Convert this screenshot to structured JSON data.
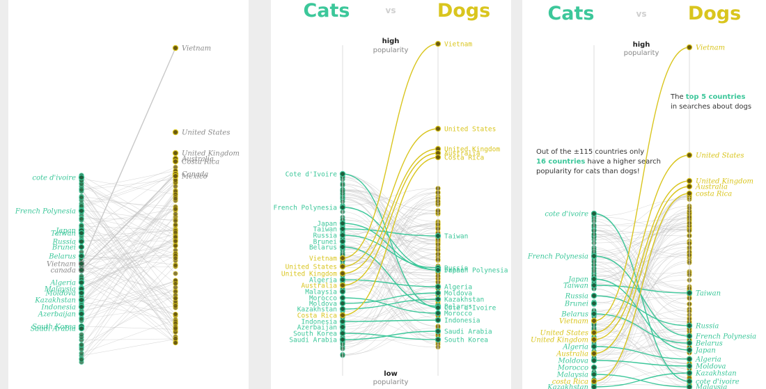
{
  "colors": {
    "cats": "#3cc79a",
    "dogs": "#d9c51e",
    "gray_line": "#bdbdbd",
    "gray_text": "#8a8a8a",
    "axis": "#dddddd"
  },
  "header": {
    "cats": "Cats",
    "vs": "vs",
    "dogs": "Dogs"
  },
  "axis": {
    "high": "high",
    "low": "low",
    "popularity": "popularity"
  },
  "annotation1": {
    "pre": "The ",
    "bold": "top 5 countries",
    "post": "in searches about dogs"
  },
  "annotation2": {
    "pre": "Out of the ±115 countries only",
    "bold": "16 countries",
    "mid": " have a higher search",
    "post": "popularity for cats than dogs!"
  },
  "chart_data": [
    {
      "type": "slope",
      "left": [
        {
          "label": "cote d'ivoire",
          "color": "cats"
        },
        {
          "label": "French Polynesia",
          "color": "cats"
        },
        {
          "label": "Japan",
          "color": "cats"
        },
        {
          "label": "Taiwan",
          "color": "cats"
        },
        {
          "label": "Russia",
          "color": "cats"
        },
        {
          "label": "Brunei",
          "color": "cats"
        },
        {
          "label": "Belarus",
          "color": "cats"
        },
        {
          "label": "Vietnam",
          "color": "gray"
        },
        {
          "label": "canada",
          "color": "gray"
        },
        {
          "label": "Algeria",
          "color": "cats"
        },
        {
          "label": "Malaysia",
          "color": "cats"
        },
        {
          "label": "Moldova",
          "color": "cats"
        },
        {
          "label": "Kazakhstan",
          "color": "cats"
        },
        {
          "label": "Indonesia",
          "color": "cats"
        },
        {
          "label": "Azerbaijan",
          "color": "cats"
        },
        {
          "label": "South Korea",
          "color": "cats"
        },
        {
          "label": "Saudi Arabia",
          "color": "cats"
        }
      ],
      "right": [
        {
          "label": "Vietnam",
          "color": "gray"
        },
        {
          "label": "United States",
          "color": "gray"
        },
        {
          "label": "United Kingdom",
          "color": "gray"
        },
        {
          "label": "Australia",
          "color": "gray"
        },
        {
          "label": "Costa Rica",
          "color": "gray"
        },
        {
          "label": "Canada",
          "color": "gray"
        },
        {
          "label": "Mexico",
          "color": "gray"
        }
      ]
    },
    {
      "type": "slope",
      "left": [
        {
          "label": "Cote d'Ivoire",
          "color": "cats"
        },
        {
          "label": "French Polynesia",
          "color": "cats"
        },
        {
          "label": "Japan",
          "color": "cats"
        },
        {
          "label": "Taiwan",
          "color": "cats"
        },
        {
          "label": "Russia",
          "color": "cats"
        },
        {
          "label": "Brunei",
          "color": "cats"
        },
        {
          "label": "Belarus",
          "color": "cats"
        },
        {
          "label": "Vietnam",
          "color": "dogs"
        },
        {
          "label": "United States",
          "color": "dogs"
        },
        {
          "label": "United Kingdom",
          "color": "dogs"
        },
        {
          "label": "Algeria",
          "color": "cats"
        },
        {
          "label": "Australia",
          "color": "dogs"
        },
        {
          "label": "Malaysia",
          "color": "cats"
        },
        {
          "label": "Morocco",
          "color": "cats"
        },
        {
          "label": "Moldova",
          "color": "cats"
        },
        {
          "label": "Kazakhstan",
          "color": "cats"
        },
        {
          "label": "Costa Rica",
          "color": "dogs"
        },
        {
          "label": "Indonesia",
          "color": "cats"
        },
        {
          "label": "Azerbaijan",
          "color": "cats"
        },
        {
          "label": "South Korea",
          "color": "cats"
        },
        {
          "label": "Saudi Arabia",
          "color": "cats"
        }
      ],
      "right": [
        {
          "label": "Vietnam",
          "color": "dogs"
        },
        {
          "label": "United States",
          "color": "dogs"
        },
        {
          "label": "United Kingdom",
          "color": "dogs"
        },
        {
          "label": "Australia",
          "color": "dogs"
        },
        {
          "label": "Costa Rica",
          "color": "dogs"
        },
        {
          "label": "Taiwan",
          "color": "cats"
        },
        {
          "label": "Russia",
          "color": "cats"
        },
        {
          "label": "Japan",
          "color": "cats"
        },
        {
          "label": "French Polynesia",
          "color": "cats"
        },
        {
          "label": "Algeria",
          "color": "cats"
        },
        {
          "label": "Moldova",
          "color": "cats"
        },
        {
          "label": "Kazakhstan",
          "color": "cats"
        },
        {
          "label": "Belarus",
          "color": "cats"
        },
        {
          "label": "Cote d'Ivoire",
          "color": "cats"
        },
        {
          "label": "Morocco",
          "color": "cats"
        },
        {
          "label": "Indonesia",
          "color": "cats"
        },
        {
          "label": "Saudi Arabia",
          "color": "cats"
        },
        {
          "label": "South Korea",
          "color": "cats"
        }
      ]
    },
    {
      "type": "slope",
      "left": [
        {
          "label": "cote d'ivoire",
          "color": "cats"
        },
        {
          "label": "French Polynesia",
          "color": "cats"
        },
        {
          "label": "Japan",
          "color": "cats"
        },
        {
          "label": "Taiwan",
          "color": "cats"
        },
        {
          "label": "Russia",
          "color": "cats"
        },
        {
          "label": "Brunei",
          "color": "cats"
        },
        {
          "label": "Belarus",
          "color": "cats"
        },
        {
          "label": "Vietnam",
          "color": "dogs"
        },
        {
          "label": "United States",
          "color": "dogs"
        },
        {
          "label": "United Kingdom",
          "color": "dogs"
        },
        {
          "label": "Algeria",
          "color": "cats"
        },
        {
          "label": "Australia",
          "color": "dogs"
        },
        {
          "label": "Moldova",
          "color": "cats"
        },
        {
          "label": "Morocco",
          "color": "cats"
        },
        {
          "label": "Malaysia",
          "color": "cats"
        },
        {
          "label": "costa Rica",
          "color": "dogs"
        },
        {
          "label": "Kazakhstan",
          "color": "cats"
        }
      ],
      "right": [
        {
          "label": "Vietnam",
          "color": "dogs"
        },
        {
          "label": "United States",
          "color": "dogs"
        },
        {
          "label": "United Kingdom",
          "color": "dogs"
        },
        {
          "label": "Australia",
          "color": "dogs"
        },
        {
          "label": "costa Rica",
          "color": "dogs"
        },
        {
          "label": "Taiwan",
          "color": "cats"
        },
        {
          "label": "Russia",
          "color": "cats"
        },
        {
          "label": "French Polynesia",
          "color": "cats"
        },
        {
          "label": "Belarus",
          "color": "cats"
        },
        {
          "label": "Japan",
          "color": "cats"
        },
        {
          "label": "Algeria",
          "color": "cats"
        },
        {
          "label": "Moldova",
          "color": "cats"
        },
        {
          "label": "Kazakhstan",
          "color": "cats"
        },
        {
          "label": "cote d'ivoire",
          "color": "cats"
        },
        {
          "label": "Malaysia",
          "color": "cats"
        }
      ]
    }
  ]
}
